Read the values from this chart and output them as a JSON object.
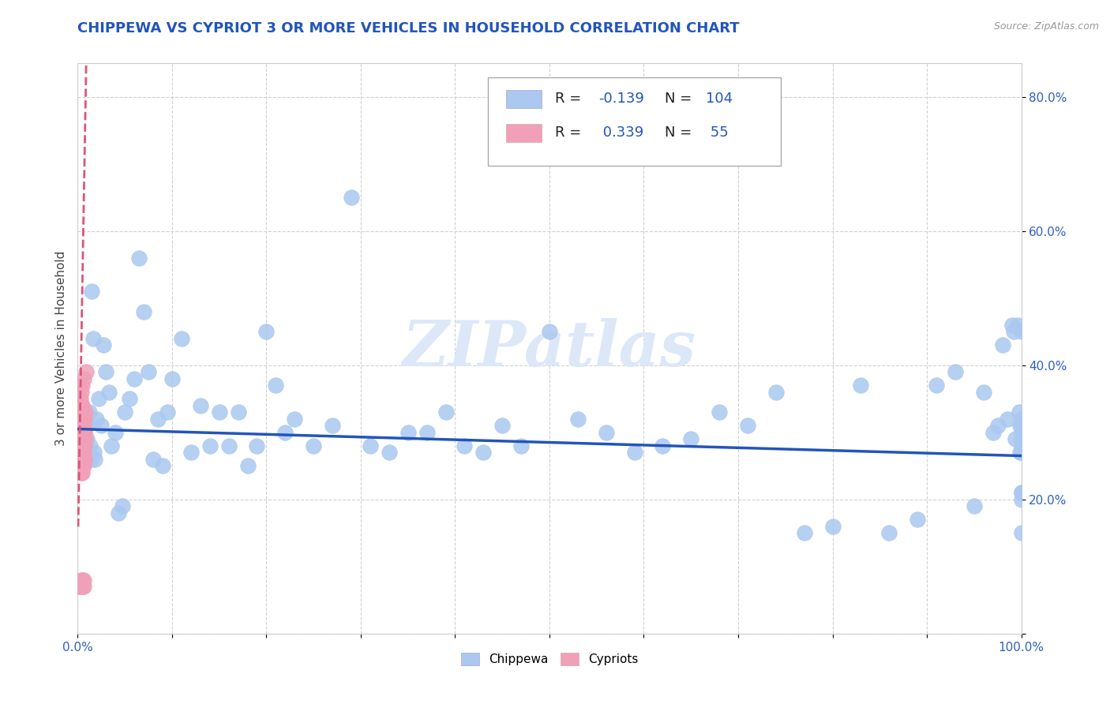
{
  "title": "CHIPPEWA VS CYPRIOT 3 OR MORE VEHICLES IN HOUSEHOLD CORRELATION CHART",
  "source_text": "Source: ZipAtlas.com",
  "ylabel": "3 or more Vehicles in Household",
  "xlim": [
    0.0,
    1.0
  ],
  "ylim": [
    0.0,
    0.85
  ],
  "xticks": [
    0.0,
    0.1,
    0.2,
    0.3,
    0.4,
    0.5,
    0.6,
    0.7,
    0.8,
    0.9,
    1.0
  ],
  "xticklabels": [
    "0.0%",
    "",
    "",
    "",
    "",
    "",
    "",
    "",
    "",
    "",
    "100.0%"
  ],
  "yticks": [
    0.0,
    0.2,
    0.4,
    0.6,
    0.8
  ],
  "yticklabels": [
    "",
    "20.0%",
    "40.0%",
    "60.0%",
    "80.0%"
  ],
  "chippewa_color": "#aac8f0",
  "cypriot_color": "#f0a0b8",
  "chippewa_line_color": "#2255bb",
  "cypriot_line_color": "#dd5577",
  "watermark": "ZIPatlas",
  "watermark_color": "#dce8f8",
  "title_color": "#2255bb",
  "title_fontsize": 13,
  "legend_R_color": "#2255bb",
  "legend_label1": "Chippewa",
  "legend_label2": "Cypriots",
  "chippewa_x": [
    0.004,
    0.005,
    0.005,
    0.006,
    0.007,
    0.008,
    0.009,
    0.01,
    0.01,
    0.012,
    0.013,
    0.014,
    0.015,
    0.016,
    0.017,
    0.018,
    0.02,
    0.022,
    0.025,
    0.027,
    0.03,
    0.033,
    0.036,
    0.04,
    0.043,
    0.047,
    0.05,
    0.055,
    0.06,
    0.065,
    0.07,
    0.075,
    0.08,
    0.085,
    0.09,
    0.095,
    0.1,
    0.11,
    0.12,
    0.13,
    0.14,
    0.15,
    0.16,
    0.17,
    0.18,
    0.19,
    0.2,
    0.21,
    0.22,
    0.23,
    0.25,
    0.27,
    0.29,
    0.31,
    0.33,
    0.35,
    0.37,
    0.39,
    0.41,
    0.43,
    0.45,
    0.47,
    0.5,
    0.53,
    0.56,
    0.59,
    0.62,
    0.65,
    0.68,
    0.71,
    0.74,
    0.77,
    0.8,
    0.83,
    0.86,
    0.89,
    0.91,
    0.93,
    0.95,
    0.96,
    0.97,
    0.975,
    0.98,
    0.985,
    0.99,
    0.992,
    0.994,
    0.996,
    0.998,
    0.999,
    0.999,
    1.0,
    1.0,
    1.0,
    1.0,
    1.0,
    1.0,
    1.0,
    1.0,
    1.0,
    1.0,
    1.0,
    1.0,
    1.0
  ],
  "chippewa_y": [
    0.3,
    0.29,
    0.31,
    0.28,
    0.3,
    0.27,
    0.32,
    0.29,
    0.31,
    0.33,
    0.28,
    0.26,
    0.51,
    0.44,
    0.27,
    0.26,
    0.32,
    0.35,
    0.31,
    0.43,
    0.39,
    0.36,
    0.28,
    0.3,
    0.18,
    0.19,
    0.33,
    0.35,
    0.38,
    0.56,
    0.48,
    0.39,
    0.26,
    0.32,
    0.25,
    0.33,
    0.38,
    0.44,
    0.27,
    0.34,
    0.28,
    0.33,
    0.28,
    0.33,
    0.25,
    0.28,
    0.45,
    0.37,
    0.3,
    0.32,
    0.28,
    0.31,
    0.65,
    0.28,
    0.27,
    0.3,
    0.3,
    0.33,
    0.28,
    0.27,
    0.31,
    0.28,
    0.45,
    0.32,
    0.3,
    0.27,
    0.28,
    0.29,
    0.33,
    0.31,
    0.36,
    0.15,
    0.16,
    0.37,
    0.15,
    0.17,
    0.37,
    0.39,
    0.19,
    0.36,
    0.3,
    0.31,
    0.43,
    0.32,
    0.46,
    0.45,
    0.29,
    0.46,
    0.33,
    0.27,
    0.31,
    0.21,
    0.15,
    0.29,
    0.31,
    0.3,
    0.28,
    0.45,
    0.32,
    0.27,
    0.31,
    0.21,
    0.3,
    0.2
  ],
  "cypriot_x": [
    0.001,
    0.002,
    0.002,
    0.003,
    0.003,
    0.003,
    0.003,
    0.003,
    0.003,
    0.004,
    0.004,
    0.004,
    0.004,
    0.004,
    0.004,
    0.004,
    0.004,
    0.004,
    0.004,
    0.004,
    0.004,
    0.004,
    0.004,
    0.005,
    0.005,
    0.005,
    0.005,
    0.005,
    0.005,
    0.005,
    0.005,
    0.005,
    0.005,
    0.005,
    0.005,
    0.005,
    0.005,
    0.006,
    0.006,
    0.006,
    0.006,
    0.006,
    0.006,
    0.006,
    0.006,
    0.006,
    0.006,
    0.006,
    0.007,
    0.007,
    0.007,
    0.007,
    0.008,
    0.008,
    0.009
  ],
  "cypriot_y": [
    0.07,
    0.28,
    0.3,
    0.27,
    0.28,
    0.29,
    0.3,
    0.31,
    0.35,
    0.07,
    0.08,
    0.24,
    0.26,
    0.27,
    0.27,
    0.28,
    0.29,
    0.3,
    0.31,
    0.32,
    0.33,
    0.34,
    0.36,
    0.07,
    0.08,
    0.24,
    0.25,
    0.26,
    0.27,
    0.28,
    0.29,
    0.3,
    0.31,
    0.32,
    0.33,
    0.34,
    0.37,
    0.07,
    0.08,
    0.25,
    0.26,
    0.27,
    0.28,
    0.29,
    0.3,
    0.31,
    0.32,
    0.38,
    0.26,
    0.28,
    0.3,
    0.32,
    0.29,
    0.33,
    0.39
  ]
}
